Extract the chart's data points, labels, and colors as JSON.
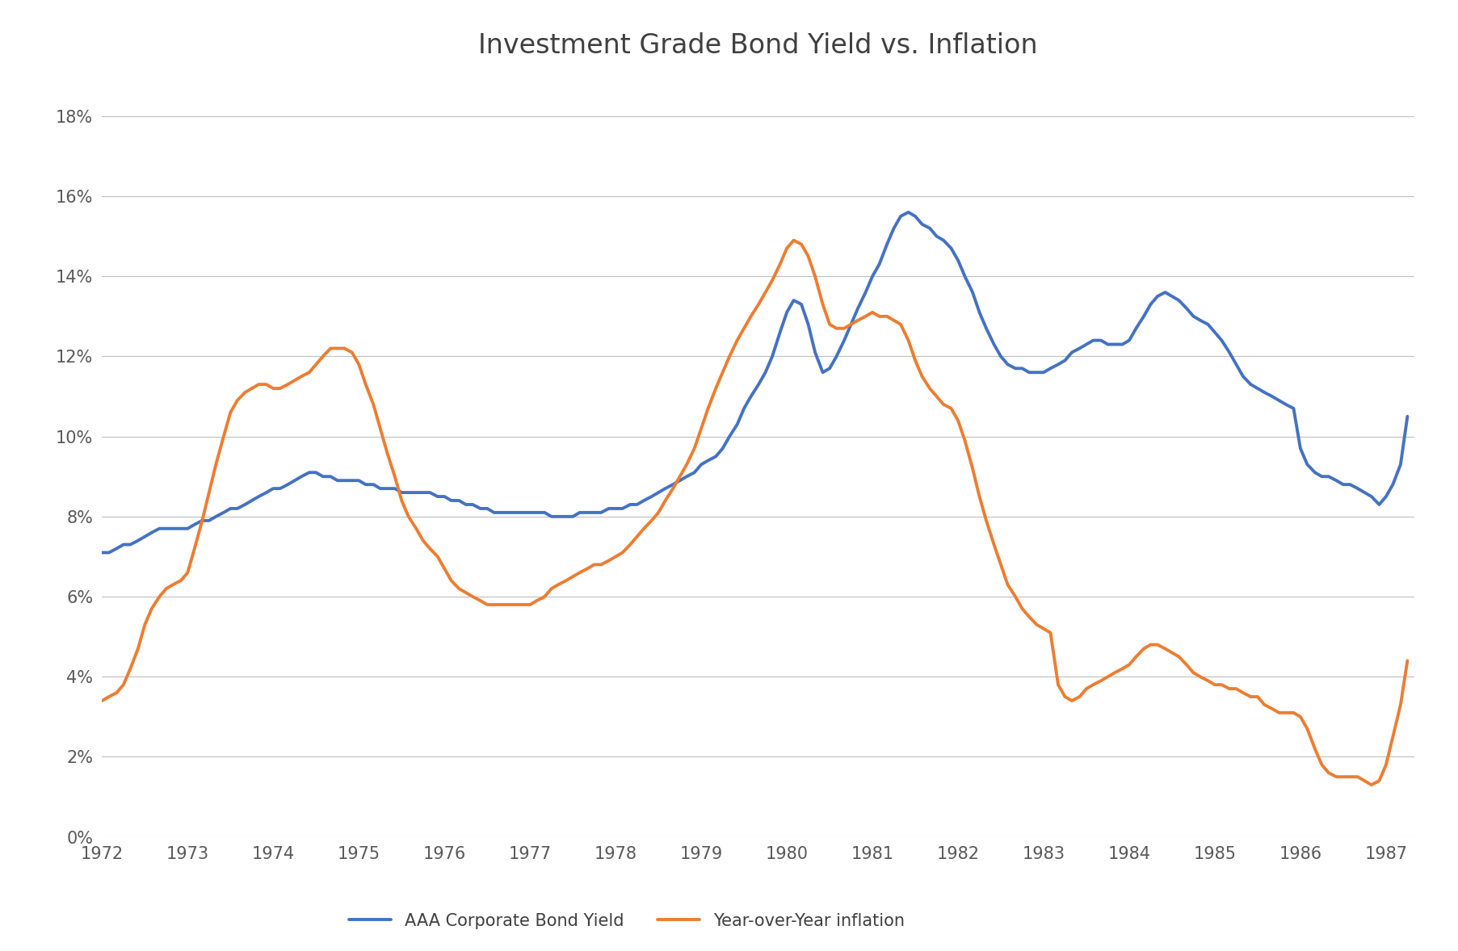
{
  "title": "Investment Grade Bond Yield vs. Inflation",
  "title_fontsize": 24,
  "background_color": "#ffffff",
  "grid_color": "#bfbfbf",
  "ylim": [
    0,
    0.19
  ],
  "yticks": [
    0.0,
    0.02,
    0.04,
    0.06,
    0.08,
    0.1,
    0.12,
    0.14,
    0.16,
    0.18
  ],
  "xlim_start": 1972.0,
  "xlim_end": 1987.33,
  "xtick_labels": [
    "1972",
    "1973",
    "1974",
    "1975",
    "1976",
    "1977",
    "1978",
    "1979",
    "1980",
    "1981",
    "1982",
    "1983",
    "1984",
    "1985",
    "1986",
    "1987"
  ],
  "legend_labels": [
    "AAA Corporate Bond Yield",
    "Year-over-Year inflation"
  ],
  "bond_color": "#4472C4",
  "inflation_color": "#ED7D31",
  "line_width": 2.8,
  "bond_x": [
    1972.0,
    1972.08,
    1972.17,
    1972.25,
    1972.33,
    1972.42,
    1972.5,
    1972.58,
    1972.67,
    1972.75,
    1972.83,
    1972.92,
    1973.0,
    1973.08,
    1973.17,
    1973.25,
    1973.33,
    1973.42,
    1973.5,
    1973.58,
    1973.67,
    1973.75,
    1973.83,
    1973.92,
    1974.0,
    1974.08,
    1974.17,
    1974.25,
    1974.33,
    1974.42,
    1974.5,
    1974.58,
    1974.67,
    1974.75,
    1974.83,
    1974.92,
    1975.0,
    1975.08,
    1975.17,
    1975.25,
    1975.33,
    1975.42,
    1975.5,
    1975.58,
    1975.67,
    1975.75,
    1975.83,
    1975.92,
    1976.0,
    1976.08,
    1976.17,
    1976.25,
    1976.33,
    1976.42,
    1976.5,
    1976.58,
    1976.67,
    1976.75,
    1976.83,
    1976.92,
    1977.0,
    1977.08,
    1977.17,
    1977.25,
    1977.33,
    1977.42,
    1977.5,
    1977.58,
    1977.67,
    1977.75,
    1977.83,
    1977.92,
    1978.0,
    1978.08,
    1978.17,
    1978.25,
    1978.33,
    1978.42,
    1978.5,
    1978.58,
    1978.67,
    1978.75,
    1978.83,
    1978.92,
    1979.0,
    1979.08,
    1979.17,
    1979.25,
    1979.33,
    1979.42,
    1979.5,
    1979.58,
    1979.67,
    1979.75,
    1979.83,
    1979.92,
    1980.0,
    1980.08,
    1980.17,
    1980.25,
    1980.33,
    1980.42,
    1980.5,
    1980.58,
    1980.67,
    1980.75,
    1980.83,
    1980.92,
    1981.0,
    1981.08,
    1981.17,
    1981.25,
    1981.33,
    1981.42,
    1981.5,
    1981.58,
    1981.67,
    1981.75,
    1981.83,
    1981.92,
    1982.0,
    1982.08,
    1982.17,
    1982.25,
    1982.33,
    1982.42,
    1982.5,
    1982.58,
    1982.67,
    1982.75,
    1982.83,
    1982.92,
    1983.0,
    1983.08,
    1983.17,
    1983.25,
    1983.33,
    1983.42,
    1983.5,
    1983.58,
    1983.67,
    1983.75,
    1983.83,
    1983.92,
    1984.0,
    1984.08,
    1984.17,
    1984.25,
    1984.33,
    1984.42,
    1984.5,
    1984.58,
    1984.67,
    1984.75,
    1984.83,
    1984.92,
    1985.0,
    1985.08,
    1985.17,
    1985.25,
    1985.33,
    1985.42,
    1985.5,
    1985.58,
    1985.67,
    1985.75,
    1985.83,
    1985.92,
    1986.0,
    1986.08,
    1986.17,
    1986.25,
    1986.33,
    1986.42,
    1986.5,
    1986.58,
    1986.67,
    1986.75,
    1986.83,
    1986.92,
    1987.0,
    1987.08,
    1987.17,
    1987.25
  ],
  "bond_y": [
    0.071,
    0.071,
    0.072,
    0.073,
    0.073,
    0.074,
    0.075,
    0.076,
    0.077,
    0.077,
    0.077,
    0.077,
    0.077,
    0.078,
    0.079,
    0.079,
    0.08,
    0.081,
    0.082,
    0.082,
    0.083,
    0.084,
    0.085,
    0.086,
    0.087,
    0.087,
    0.088,
    0.089,
    0.09,
    0.091,
    0.091,
    0.09,
    0.09,
    0.089,
    0.089,
    0.089,
    0.089,
    0.088,
    0.088,
    0.087,
    0.087,
    0.087,
    0.086,
    0.086,
    0.086,
    0.086,
    0.086,
    0.085,
    0.085,
    0.084,
    0.084,
    0.083,
    0.083,
    0.082,
    0.082,
    0.081,
    0.081,
    0.081,
    0.081,
    0.081,
    0.081,
    0.081,
    0.081,
    0.08,
    0.08,
    0.08,
    0.08,
    0.081,
    0.081,
    0.081,
    0.081,
    0.082,
    0.082,
    0.082,
    0.083,
    0.083,
    0.084,
    0.085,
    0.086,
    0.087,
    0.088,
    0.089,
    0.09,
    0.091,
    0.093,
    0.094,
    0.095,
    0.097,
    0.1,
    0.103,
    0.107,
    0.11,
    0.113,
    0.116,
    0.12,
    0.126,
    0.131,
    0.134,
    0.133,
    0.128,
    0.121,
    0.116,
    0.117,
    0.12,
    0.124,
    0.128,
    0.132,
    0.136,
    0.14,
    0.143,
    0.148,
    0.152,
    0.155,
    0.156,
    0.155,
    0.153,
    0.152,
    0.15,
    0.149,
    0.147,
    0.144,
    0.14,
    0.136,
    0.131,
    0.127,
    0.123,
    0.12,
    0.118,
    0.117,
    0.117,
    0.116,
    0.116,
    0.116,
    0.117,
    0.118,
    0.119,
    0.121,
    0.122,
    0.123,
    0.124,
    0.124,
    0.123,
    0.123,
    0.123,
    0.124,
    0.127,
    0.13,
    0.133,
    0.135,
    0.136,
    0.135,
    0.134,
    0.132,
    0.13,
    0.129,
    0.128,
    0.126,
    0.124,
    0.121,
    0.118,
    0.115,
    0.113,
    0.112,
    0.111,
    0.11,
    0.109,
    0.108,
    0.107,
    0.097,
    0.093,
    0.091,
    0.09,
    0.09,
    0.089,
    0.088,
    0.088,
    0.087,
    0.086,
    0.085,
    0.083,
    0.085,
    0.088,
    0.093,
    0.105
  ],
  "inflation_x": [
    1972.0,
    1972.08,
    1972.17,
    1972.25,
    1972.33,
    1972.42,
    1972.5,
    1972.58,
    1972.67,
    1972.75,
    1972.83,
    1972.92,
    1973.0,
    1973.08,
    1973.17,
    1973.25,
    1973.33,
    1973.42,
    1973.5,
    1973.58,
    1973.67,
    1973.75,
    1973.83,
    1973.92,
    1974.0,
    1974.08,
    1974.17,
    1974.25,
    1974.33,
    1974.42,
    1974.5,
    1974.58,
    1974.67,
    1974.75,
    1974.83,
    1974.92,
    1975.0,
    1975.08,
    1975.17,
    1975.25,
    1975.33,
    1975.42,
    1975.5,
    1975.58,
    1975.67,
    1975.75,
    1975.83,
    1975.92,
    1976.0,
    1976.08,
    1976.17,
    1976.25,
    1976.33,
    1976.42,
    1976.5,
    1976.58,
    1976.67,
    1976.75,
    1976.83,
    1976.92,
    1977.0,
    1977.08,
    1977.17,
    1977.25,
    1977.33,
    1977.42,
    1977.5,
    1977.58,
    1977.67,
    1977.75,
    1977.83,
    1977.92,
    1978.0,
    1978.08,
    1978.17,
    1978.25,
    1978.33,
    1978.42,
    1978.5,
    1978.58,
    1978.67,
    1978.75,
    1978.83,
    1978.92,
    1979.0,
    1979.08,
    1979.17,
    1979.25,
    1979.33,
    1979.42,
    1979.5,
    1979.58,
    1979.67,
    1979.75,
    1979.83,
    1979.92,
    1980.0,
    1980.08,
    1980.17,
    1980.25,
    1980.33,
    1980.42,
    1980.5,
    1980.58,
    1980.67,
    1980.75,
    1980.83,
    1980.92,
    1981.0,
    1981.08,
    1981.17,
    1981.25,
    1981.33,
    1981.42,
    1981.5,
    1981.58,
    1981.67,
    1981.75,
    1981.83,
    1981.92,
    1982.0,
    1982.08,
    1982.17,
    1982.25,
    1982.33,
    1982.42,
    1982.5,
    1982.58,
    1982.67,
    1982.75,
    1982.83,
    1982.92,
    1983.0,
    1983.08,
    1983.17,
    1983.25,
    1983.33,
    1983.42,
    1983.5,
    1983.58,
    1983.67,
    1983.75,
    1983.83,
    1983.92,
    1984.0,
    1984.08,
    1984.17,
    1984.25,
    1984.33,
    1984.42,
    1984.5,
    1984.58,
    1984.67,
    1984.75,
    1984.83,
    1984.92,
    1985.0,
    1985.08,
    1985.17,
    1985.25,
    1985.33,
    1985.42,
    1985.5,
    1985.58,
    1985.67,
    1985.75,
    1985.83,
    1985.92,
    1986.0,
    1986.08,
    1986.17,
    1986.25,
    1986.33,
    1986.42,
    1986.5,
    1986.58,
    1986.67,
    1986.75,
    1986.83,
    1986.92,
    1987.0,
    1987.08,
    1987.17,
    1987.25
  ],
  "inflation_y": [
    0.034,
    0.035,
    0.036,
    0.038,
    0.042,
    0.047,
    0.053,
    0.057,
    0.06,
    0.062,
    0.063,
    0.064,
    0.066,
    0.072,
    0.079,
    0.086,
    0.093,
    0.1,
    0.106,
    0.109,
    0.111,
    0.112,
    0.113,
    0.113,
    0.112,
    0.112,
    0.113,
    0.114,
    0.115,
    0.116,
    0.118,
    0.12,
    0.122,
    0.122,
    0.122,
    0.121,
    0.118,
    0.113,
    0.108,
    0.102,
    0.096,
    0.09,
    0.084,
    0.08,
    0.077,
    0.074,
    0.072,
    0.07,
    0.067,
    0.064,
    0.062,
    0.061,
    0.06,
    0.059,
    0.058,
    0.058,
    0.058,
    0.058,
    0.058,
    0.058,
    0.058,
    0.059,
    0.06,
    0.062,
    0.063,
    0.064,
    0.065,
    0.066,
    0.067,
    0.068,
    0.068,
    0.069,
    0.07,
    0.071,
    0.073,
    0.075,
    0.077,
    0.079,
    0.081,
    0.084,
    0.087,
    0.09,
    0.093,
    0.097,
    0.102,
    0.107,
    0.112,
    0.116,
    0.12,
    0.124,
    0.127,
    0.13,
    0.133,
    0.136,
    0.139,
    0.143,
    0.147,
    0.149,
    0.148,
    0.145,
    0.14,
    0.133,
    0.128,
    0.127,
    0.127,
    0.128,
    0.129,
    0.13,
    0.131,
    0.13,
    0.13,
    0.129,
    0.128,
    0.124,
    0.119,
    0.115,
    0.112,
    0.11,
    0.108,
    0.107,
    0.104,
    0.099,
    0.092,
    0.085,
    0.079,
    0.073,
    0.068,
    0.063,
    0.06,
    0.057,
    0.055,
    0.053,
    0.052,
    0.051,
    0.038,
    0.035,
    0.034,
    0.035,
    0.037,
    0.038,
    0.039,
    0.04,
    0.041,
    0.042,
    0.043,
    0.045,
    0.047,
    0.048,
    0.048,
    0.047,
    0.046,
    0.045,
    0.043,
    0.041,
    0.04,
    0.039,
    0.038,
    0.038,
    0.037,
    0.037,
    0.036,
    0.035,
    0.035,
    0.033,
    0.032,
    0.031,
    0.031,
    0.031,
    0.03,
    0.027,
    0.022,
    0.018,
    0.016,
    0.015,
    0.015,
    0.015,
    0.015,
    0.014,
    0.013,
    0.014,
    0.018,
    0.025,
    0.033,
    0.044
  ]
}
